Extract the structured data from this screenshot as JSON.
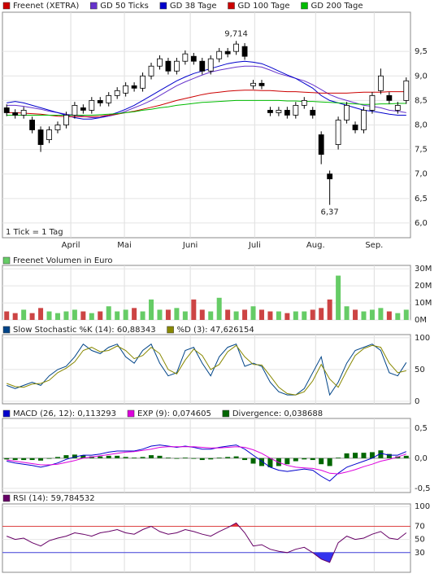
{
  "chart_data": [
    {
      "type": "candlestick",
      "name": "Freenet (XETRA)",
      "color": "#cc0000",
      "open": [
        8.35,
        8.25,
        8.2,
        8.1,
        7.9,
        7.7,
        7.9,
        8.0,
        8.2,
        8.35,
        8.3,
        8.5,
        8.45,
        8.6,
        8.65,
        8.8,
        8.75,
        9.0,
        9.2,
        9.3,
        9.1,
        9.3,
        9.4,
        9.3,
        9.1,
        9.35,
        9.5,
        9.5,
        9.6,
        8.8,
        8.85,
        8.3,
        8.25,
        8.3,
        8.2,
        8.4,
        8.3,
        7.8,
        7.0,
        7.6,
        8.1,
        8.0,
        7.9,
        8.3,
        8.7,
        8.6,
        8.3,
        8.5
      ],
      "high": [
        8.42,
        8.32,
        8.37,
        8.17,
        7.97,
        7.97,
        8.07,
        8.27,
        8.47,
        8.42,
        8.57,
        8.57,
        8.67,
        8.77,
        8.87,
        8.87,
        9.07,
        9.27,
        9.42,
        9.37,
        9.37,
        9.52,
        9.47,
        9.37,
        9.42,
        9.57,
        9.57,
        9.714,
        9.67,
        8.92,
        8.92,
        8.37,
        8.37,
        8.37,
        8.47,
        8.57,
        8.37,
        7.87,
        7.07,
        8.17,
        8.47,
        8.07,
        8.37,
        8.67,
        9.15,
        8.67,
        8.47,
        8.97
      ],
      "low": [
        8.18,
        8.13,
        8.13,
        7.83,
        7.45,
        7.63,
        7.83,
        7.93,
        8.13,
        8.23,
        8.23,
        8.38,
        8.38,
        8.53,
        8.58,
        8.68,
        8.68,
        8.93,
        9.13,
        9.03,
        9.03,
        9.23,
        9.23,
        9.03,
        9.03,
        9.28,
        9.38,
        9.43,
        9.33,
        8.73,
        8.73,
        8.18,
        8.18,
        8.13,
        8.13,
        8.33,
        8.13,
        7.2,
        6.37,
        7.5,
        8.03,
        7.83,
        7.83,
        8.23,
        8.63,
        8.43,
        8.23,
        8.43
      ],
      "close": [
        8.25,
        8.2,
        8.3,
        7.9,
        7.6,
        7.9,
        8.0,
        8.2,
        8.4,
        8.3,
        8.5,
        8.45,
        8.6,
        8.7,
        8.8,
        8.75,
        9.0,
        9.2,
        9.35,
        9.1,
        9.3,
        9.45,
        9.3,
        9.1,
        9.35,
        9.5,
        9.45,
        9.65,
        9.4,
        8.85,
        8.8,
        8.25,
        8.3,
        8.2,
        8.4,
        8.5,
        8.2,
        7.4,
        6.9,
        8.1,
        8.4,
        7.9,
        8.3,
        8.6,
        9.0,
        8.5,
        8.4,
        8.9
      ],
      "series": [
        {
          "name": "GD 50 Ticks",
          "color": "#6633cc",
          "values": [
            8.4,
            8.4,
            8.38,
            8.35,
            8.32,
            8.28,
            8.25,
            8.22,
            8.2,
            8.18,
            8.15,
            8.15,
            8.18,
            8.22,
            8.28,
            8.35,
            8.42,
            8.5,
            8.6,
            8.7,
            8.8,
            8.88,
            8.95,
            9.02,
            9.08,
            9.12,
            9.15,
            9.18,
            9.2,
            9.2,
            9.18,
            9.12,
            9.05,
            9.0,
            8.95,
            8.9,
            8.82,
            8.72,
            8.62,
            8.55,
            8.5,
            8.45,
            8.4,
            8.38,
            8.35,
            8.3,
            8.28,
            8.25
          ]
        },
        {
          "name": "GD 38 Tage",
          "color": "#0000cc",
          "values": [
            8.45,
            8.48,
            8.45,
            8.4,
            8.35,
            8.3,
            8.25,
            8.2,
            8.15,
            8.12,
            8.12,
            8.15,
            8.2,
            8.25,
            8.32,
            8.4,
            8.5,
            8.6,
            8.7,
            8.8,
            8.9,
            8.98,
            9.05,
            9.1,
            9.15,
            9.2,
            9.25,
            9.28,
            9.3,
            9.28,
            9.25,
            9.18,
            9.1,
            9.02,
            8.95,
            8.85,
            8.75,
            8.6,
            8.5,
            8.45,
            8.4,
            8.35,
            8.3,
            8.28,
            8.25,
            8.22,
            8.2,
            8.2
          ]
        },
        {
          "name": "GD 100 Tage",
          "color": "#cc0000",
          "values": [
            8.25,
            8.25,
            8.24,
            8.23,
            8.22,
            8.2,
            8.18,
            8.17,
            8.17,
            8.17,
            8.17,
            8.18,
            8.2,
            8.22,
            8.25,
            8.28,
            8.32,
            8.36,
            8.4,
            8.45,
            8.5,
            8.54,
            8.58,
            8.62,
            8.65,
            8.67,
            8.69,
            8.7,
            8.71,
            8.71,
            8.7,
            8.7,
            8.69,
            8.68,
            8.68,
            8.67,
            8.66,
            8.65,
            8.65,
            8.65,
            8.65,
            8.66,
            8.67,
            8.67,
            8.67,
            8.68,
            8.68,
            8.68
          ]
        },
        {
          "name": "GD 200 Tage",
          "color": "#00bb00",
          "values": [
            8.2,
            8.2,
            8.2,
            8.2,
            8.2,
            8.2,
            8.2,
            8.2,
            8.2,
            8.2,
            8.2,
            8.21,
            8.22,
            8.23,
            8.25,
            8.27,
            8.3,
            8.32,
            8.35,
            8.37,
            8.4,
            8.42,
            8.44,
            8.46,
            8.47,
            8.48,
            8.49,
            8.5,
            8.5,
            8.5,
            8.5,
            8.5,
            8.5,
            8.49,
            8.49,
            8.48,
            8.48,
            8.47,
            8.46,
            8.45,
            8.44,
            8.43,
            8.42,
            8.42,
            8.43,
            8.43,
            8.44,
            8.44
          ]
        }
      ],
      "ylim": [
        5.7,
        10.3
      ],
      "yticks": [
        {
          "value": 6,
          "label": "6,0"
        },
        {
          "value": 6.5,
          "label": "6,5"
        },
        {
          "value": 7,
          "label": "7,0"
        },
        {
          "value": 7.5,
          "label": "7,5"
        },
        {
          "value": 8,
          "label": "8,0"
        },
        {
          "value": 8.5,
          "label": "8,5"
        },
        {
          "value": 9,
          "label": "9,0"
        },
        {
          "value": 9.5,
          "label": "9,5"
        }
      ],
      "xlim": [
        0,
        48
      ],
      "xticks": [
        {
          "value": 8.04,
          "label": "April"
        },
        {
          "value": 14.35,
          "label": "Mai"
        },
        {
          "value": 22.1,
          "label": "Juni"
        },
        {
          "value": 29.67,
          "label": "Juli"
        },
        {
          "value": 36.84,
          "label": "Aug."
        },
        {
          "value": 43.73,
          "label": "Sep."
        }
      ],
      "annotations": [
        {
          "text": "9,714",
          "x": 27.5,
          "y": 9.714,
          "position": "above"
        },
        {
          "text": "6,37",
          "x": 38.5,
          "y": 6.37,
          "position": "below"
        }
      ],
      "note": "1 Tick = 1 Tag",
      "grid": true
    },
    {
      "type": "bar",
      "title": "Freenet Volumen in Euro",
      "color": "#66cc66",
      "color_up": "#66cc66",
      "color_down": "#cc4444",
      "values": [
        5,
        4,
        6,
        4,
        7,
        5,
        4,
        5,
        6,
        5,
        4,
        5,
        8,
        5,
        6,
        7,
        5,
        12,
        6,
        6,
        7,
        5,
        12,
        6,
        5,
        13,
        6,
        5,
        6,
        8,
        6,
        5,
        5,
        4,
        5,
        5,
        6,
        7,
        12,
        26,
        8,
        6,
        5,
        6,
        7,
        5,
        4,
        6
      ],
      "ylim": [
        0,
        32
      ],
      "yticks": [
        {
          "value": 0,
          "label": "0M"
        },
        {
          "value": 10,
          "label": "10M"
        },
        {
          "value": 20,
          "label": "20M"
        },
        {
          "value": 30,
          "label": "30M"
        }
      ],
      "grid": true
    },
    {
      "type": "line",
      "series": [
        {
          "name": "Slow Stochastic %K (14): 60,88343",
          "color": "#004488",
          "values": [
            25,
            20,
            25,
            30,
            25,
            40,
            50,
            55,
            70,
            90,
            80,
            75,
            85,
            90,
            70,
            60,
            80,
            90,
            60,
            40,
            45,
            80,
            85,
            60,
            40,
            70,
            85,
            90,
            55,
            60,
            55,
            30,
            15,
            10,
            10,
            20,
            45,
            70,
            10,
            30,
            60,
            80,
            85,
            90,
            80,
            45,
            40,
            61
          ]
        },
        {
          "name": "%D (3): 47,626154",
          "color": "#888800",
          "values": [
            28,
            23,
            22,
            27,
            28,
            33,
            45,
            52,
            62,
            80,
            85,
            78,
            80,
            87,
            80,
            67,
            72,
            85,
            75,
            50,
            43,
            65,
            82,
            72,
            50,
            58,
            78,
            88,
            70,
            58,
            57,
            40,
            22,
            12,
            10,
            15,
            32,
            58,
            35,
            22,
            48,
            72,
            83,
            88,
            85,
            60,
            45,
            48
          ]
        }
      ],
      "ylim": [
        -4,
        105
      ],
      "yticks": [
        0,
        50,
        100
      ],
      "grid": true
    },
    {
      "type": "macd",
      "series": [
        {
          "name": "MACD (26, 12): 0,113293",
          "color": "#0000cc",
          "kind": "line",
          "values": [
            -0.05,
            -0.08,
            -0.1,
            -0.12,
            -0.15,
            -0.12,
            -0.08,
            -0.02,
            0.02,
            0.05,
            0.05,
            0.07,
            0.1,
            0.12,
            0.12,
            0.12,
            0.15,
            0.2,
            0.22,
            0.2,
            0.18,
            0.2,
            0.18,
            0.15,
            0.15,
            0.18,
            0.2,
            0.22,
            0.15,
            0.05,
            -0.05,
            -0.15,
            -0.2,
            -0.22,
            -0.2,
            -0.18,
            -0.2,
            -0.3,
            -0.38,
            -0.25,
            -0.15,
            -0.1,
            -0.05,
            0.0,
            0.08,
            0.05,
            0.05,
            0.11
          ]
        },
        {
          "name": "EXP (9): 0,074605",
          "color": "#dd00dd",
          "kind": "line",
          "values": [
            -0.03,
            -0.05,
            -0.07,
            -0.09,
            -0.11,
            -0.11,
            -0.1,
            -0.07,
            -0.04,
            0.0,
            0.02,
            0.04,
            0.06,
            0.08,
            0.1,
            0.11,
            0.13,
            0.15,
            0.18,
            0.19,
            0.19,
            0.19,
            0.19,
            0.18,
            0.17,
            0.17,
            0.18,
            0.19,
            0.18,
            0.14,
            0.08,
            0.0,
            -0.07,
            -0.12,
            -0.15,
            -0.16,
            -0.17,
            -0.2,
            -0.25,
            -0.26,
            -0.23,
            -0.19,
            -0.14,
            -0.1,
            -0.05,
            -0.02,
            0.02,
            0.07
          ]
        },
        {
          "name": "Divergence: 0,038688",
          "color": "#006600",
          "kind": "bar",
          "values": [
            -0.02,
            -0.03,
            -0.03,
            -0.03,
            -0.04,
            -0.01,
            0.02,
            0.05,
            0.06,
            0.05,
            0.03,
            0.03,
            0.04,
            0.04,
            0.02,
            0.01,
            0.02,
            0.05,
            0.04,
            0.01,
            -0.01,
            0.01,
            -0.01,
            -0.03,
            -0.02,
            0.01,
            0.02,
            0.03,
            -0.03,
            -0.09,
            -0.13,
            -0.15,
            -0.13,
            -0.1,
            -0.05,
            -0.02,
            -0.03,
            -0.1,
            -0.13,
            0.01,
            0.08,
            0.09,
            0.09,
            0.1,
            0.13,
            0.07,
            0.03,
            0.04
          ]
        }
      ],
      "ylim": [
        -0.57,
        0.66
      ],
      "yticks": [
        {
          "value": -0.5,
          "label": "-0,5"
        },
        {
          "value": 0,
          "label": "0,0"
        },
        {
          "value": 0.5,
          "label": "0,5"
        }
      ],
      "grid": true
    },
    {
      "type": "line",
      "series": [
        {
          "name": "RSI (14): 59,784532",
          "color": "#660066",
          "values": [
            55,
            50,
            52,
            45,
            40,
            48,
            52,
            55,
            60,
            58,
            55,
            60,
            62,
            65,
            60,
            58,
            65,
            70,
            62,
            58,
            60,
            65,
            62,
            58,
            55,
            62,
            68,
            75,
            60,
            40,
            42,
            35,
            32,
            30,
            35,
            38,
            30,
            20,
            15,
            45,
            55,
            50,
            52,
            58,
            62,
            52,
            50,
            60
          ]
        }
      ],
      "hlines": [
        {
          "value": 70,
          "color": "#dd4444",
          "fill": "#ee3333"
        },
        {
          "value": 30,
          "color": "#4444dd",
          "fill": "#3333ee"
        }
      ],
      "ylim": [
        0,
        104
      ],
      "yticks": [
        30,
        50,
        70,
        100
      ],
      "grid": true
    }
  ]
}
